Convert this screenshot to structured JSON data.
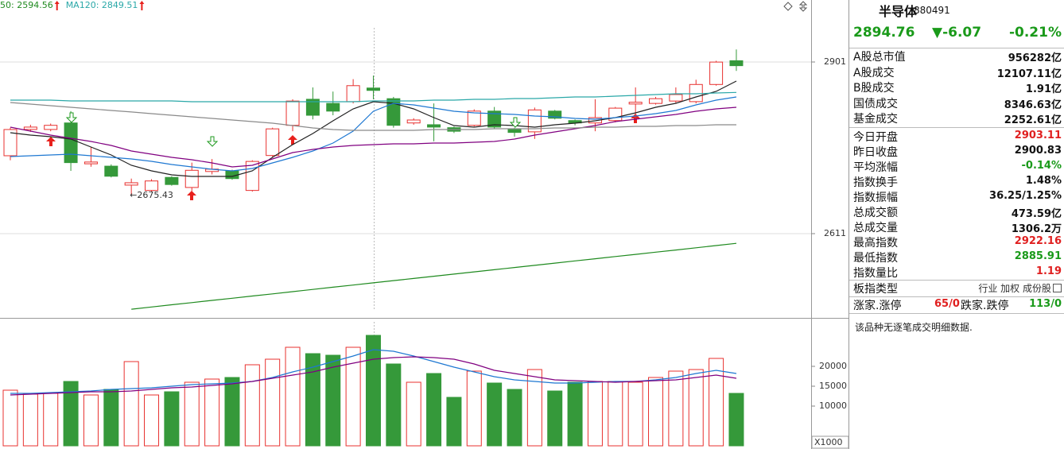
{
  "price_chart": {
    "type": "candlestick",
    "legend": [
      {
        "text": "50: 2594.56",
        "color": "#1f8a1f"
      },
      {
        "text": "MA120: 2849.51",
        "color": "#2aa8a8"
      }
    ],
    "ylim": [
      2468.7,
      3005.7
    ],
    "yticks": [
      2901,
      2611
    ],
    "grid": true,
    "up_color": "#e8312f",
    "down_color": "#35993a",
    "open": [
      2742.6,
      2787,
      2787,
      2798,
      2729,
      2725,
      2693,
      2684,
      2706,
      2689,
      2716,
      2717,
      2684,
      2743,
      2794,
      2838,
      2831,
      2834,
      2857,
      2839,
      2798,
      2795,
      2790,
      2794,
      2818,
      2788,
      2783,
      2818,
      2802,
      2798,
      2802,
      2830,
      2831,
      2835,
      2834,
      2863,
      2903.11
    ],
    "high": [
      2790,
      2795,
      2797,
      2818,
      2757,
      2728,
      2704,
      2703,
      2708,
      2731,
      2737,
      2719,
      2735,
      2790,
      2838,
      2858,
      2851,
      2872,
      2878,
      2842,
      2806,
      2831,
      2792,
      2821,
      2825,
      2790,
      2824,
      2820,
      2804,
      2838,
      2825,
      2858,
      2842,
      2858,
      2871,
      2903,
      2922.16
    ],
    "low": [
      2735,
      2783,
      2784,
      2717,
      2724,
      2706,
      2675.43,
      2682,
      2692,
      2683,
      2711,
      2702,
      2682,
      2740,
      2784,
      2804,
      2811,
      2831,
      2838,
      2790,
      2795,
      2767,
      2781,
      2792,
      2788,
      2775,
      2771,
      2804,
      2794,
      2784,
      2799,
      2804,
      2829,
      2831,
      2831,
      2861,
      2885.91
    ],
    "close": [
      2786.9,
      2791,
      2794,
      2731,
      2732,
      2708,
      2697,
      2700,
      2694,
      2718,
      2720,
      2704,
      2733,
      2788,
      2835,
      2811,
      2818,
      2861,
      2853,
      2794,
      2803,
      2791,
      2784,
      2818,
      2791,
      2782,
      2820,
      2806,
      2798,
      2807,
      2823,
      2833,
      2839,
      2846,
      2863,
      2900.83,
      2894.76
    ],
    "lines": [
      {
        "color": "#222222",
        "values": [
          2781.5,
          2777.5,
          2774.8,
          2770.8,
          2757.3,
          2743.9,
          2726.5,
          2717.1,
          2710.4,
          2707.7,
          2707.7,
          2707.7,
          2717.1,
          2739.9,
          2761.4,
          2780.2,
          2801.6,
          2821.8,
          2833.9,
          2831.2,
          2821.8,
          2807.0,
          2793.6,
          2790.9,
          2794.9,
          2793.6,
          2790.9,
          2794.9,
          2797.6,
          2801.6,
          2807.0,
          2815.1,
          2824.5,
          2831.2,
          2841.9,
          2851.3,
          2868.8
        ]
      },
      {
        "color": "#1e78d2",
        "values": [
          2741.2,
          2742.6,
          2743.9,
          2745.3,
          2742.6,
          2739.9,
          2737.2,
          2733.2,
          2727.8,
          2723.8,
          2719.7,
          2717.1,
          2721.1,
          2730.5,
          2739.9,
          2750.6,
          2764.1,
          2784.2,
          2817.8,
          2831.2,
          2828.5,
          2823.1,
          2817.8,
          2815.1,
          2813.7,
          2812.4,
          2809.7,
          2808.4,
          2805.7,
          2804.3,
          2807.0,
          2809.7,
          2813.7,
          2819.1,
          2828.5,
          2836.6,
          2841.9
        ]
      },
      {
        "color": "#800080",
        "values": [
          2790.9,
          2784.2,
          2777.5,
          2772.1,
          2766.7,
          2760.0,
          2750.6,
          2745.3,
          2739.9,
          2735.9,
          2730.5,
          2723.8,
          2726.5,
          2737.2,
          2747.9,
          2753.3,
          2757.3,
          2760.0,
          2761.4,
          2762.7,
          2762.7,
          2764.1,
          2764.1,
          2765.4,
          2766.7,
          2770.8,
          2777.5,
          2782.9,
          2788.2,
          2793.6,
          2800.3,
          2804.3,
          2808.4,
          2812.4,
          2817.8,
          2821.8,
          2824.5
        ]
      },
      {
        "color": "#8a8a8a",
        "values": [
          2832.5,
          2829.8,
          2827.2,
          2824.5,
          2821.8,
          2819.1,
          2816.5,
          2813.7,
          2811.0,
          2808.4,
          2805.7,
          2803.0,
          2800.3,
          2797.6,
          2793.6,
          2789.6,
          2786.9,
          2785.5,
          2785.5,
          2785.5,
          2785.5,
          2786.9,
          2786.9,
          2786.9,
          2788.2,
          2788.2,
          2788.2,
          2789.6,
          2789.6,
          2790.9,
          2790.9,
          2792.2,
          2792.2,
          2793.6,
          2793.6,
          2794.9,
          2794.9
        ]
      },
      {
        "color": "#2aa8a8",
        "values": [
          2836.6,
          2836.6,
          2836.6,
          2835.2,
          2835.2,
          2835.2,
          2835.2,
          2835.2,
          2835.2,
          2833.9,
          2833.9,
          2833.9,
          2833.9,
          2833.9,
          2833.9,
          2833.9,
          2833.9,
          2833.9,
          2835.2,
          2835.2,
          2835.2,
          2836.6,
          2836.6,
          2837.9,
          2837.9,
          2839.2,
          2839.2,
          2840.6,
          2841.9,
          2841.9,
          2843.3,
          2844.6,
          2846.0,
          2847.3,
          2847.3,
          2848.6,
          2849.51
        ]
      },
      {
        "color": "#1f8a1f",
        "values": [
          null,
          null,
          null,
          null,
          null,
          null,
          2483.4,
          2487.1,
          2490.8,
          2494.5,
          2498.2,
          2501.9,
          2505.6,
          2509.3,
          2513.0,
          2516.7,
          2520.5,
          2524.2,
          2527.9,
          2531.6,
          2535.3,
          2539.0,
          2542.7,
          2546.4,
          2550.1,
          2553.8,
          2557.5,
          2561.2,
          2564.9,
          2568.6,
          2572.3,
          2576.0,
          2579.7,
          2583.4,
          2587.1,
          2590.9,
          2594.56
        ]
      }
    ],
    "annotation": "←2675.43"
  },
  "volume_chart": {
    "type": "bar",
    "unit": "X1000",
    "ylim": [
      0,
      31200
    ],
    "yticks": [
      20000,
      15000,
      10000
    ],
    "values": [
      14000,
      13000,
      13200,
      16200,
      12800,
      14200,
      21200,
      12800,
      13600,
      16000,
      16800,
      17200,
      20400,
      21800,
      24800,
      23200,
      22800,
      24800,
      27800,
      20600,
      16000,
      18200,
      12200,
      18800,
      15800,
      14200,
      19200,
      13800,
      16000,
      16200,
      16200,
      16000,
      17200,
      18800,
      19200,
      22000,
      13200
    ],
    "lines": [
      {
        "color": "#1e78d2",
        "values": [
          13200,
          13200,
          13400,
          13600,
          13800,
          14200,
          14400,
          14600,
          15000,
          15400,
          15600,
          15800,
          16200,
          17200,
          18600,
          19800,
          21200,
          22600,
          24200,
          23800,
          22600,
          21200,
          19800,
          18600,
          17400,
          16600,
          16200,
          15800,
          15800,
          16000,
          16200,
          16200,
          16600,
          17200,
          18200,
          19000,
          18200
        ]
      },
      {
        "color": "#800080",
        "values": [
          12800,
          13000,
          13200,
          13400,
          13600,
          13600,
          13800,
          14200,
          14600,
          14800,
          15200,
          15600,
          16200,
          17000,
          17800,
          18600,
          19800,
          20800,
          21800,
          22200,
          22400,
          22200,
          21800,
          20600,
          19000,
          18200,
          17400,
          16600,
          16400,
          16200,
          16000,
          16200,
          16400,
          16600,
          17200,
          17800,
          17000
        ]
      }
    ]
  },
  "info_panel": {
    "name": "半导体",
    "code": "880491",
    "price": "2894.76",
    "change": "▼-6.07",
    "change_pct": "-0.21%",
    "quote_color": "#1a9a1a",
    "groups": [
      [
        {
          "label": "A股总市值",
          "value": "956282亿"
        },
        {
          "label": "A股成交",
          "value": "12107.11亿"
        },
        {
          "label": "B股成交",
          "value": "1.91亿"
        },
        {
          "label": "国债成交",
          "value": "8346.63亿"
        },
        {
          "label": "基金成交",
          "value": "2252.61亿"
        }
      ],
      [
        {
          "label": "今日开盘",
          "value": "2903.11",
          "color": "#e02020"
        },
        {
          "label": "昨日收盘",
          "value": "2900.83"
        },
        {
          "label": "平均涨幅",
          "value": "-0.14%",
          "color": "#1a9a1a"
        },
        {
          "label": "指数换手",
          "value": "1.48%"
        },
        {
          "label": "指数振幅",
          "value": "36.25/1.25%"
        },
        {
          "label": "总成交额",
          "value": "473.59亿"
        },
        {
          "label": "总成交量",
          "value": "1306.2万"
        },
        {
          "label": "最高指数",
          "value": "2922.16",
          "color": "#e02020"
        },
        {
          "label": "最低指数",
          "value": "2885.91",
          "color": "#1a9a1a"
        },
        {
          "label": "指数量比",
          "value": "1.19",
          "color": "#e02020"
        }
      ]
    ],
    "sector_type": {
      "label": "板指类型",
      "value": "行业 加权 成份股"
    },
    "breadth": {
      "up_label": "涨家.涨停",
      "up_value": "65/0",
      "up_color": "#e02020",
      "down_label": "跌家.跌停",
      "down_value": "113/0",
      "down_color": "#1a9a1a"
    },
    "note": "该品种无逐笔成交明细数据."
  }
}
